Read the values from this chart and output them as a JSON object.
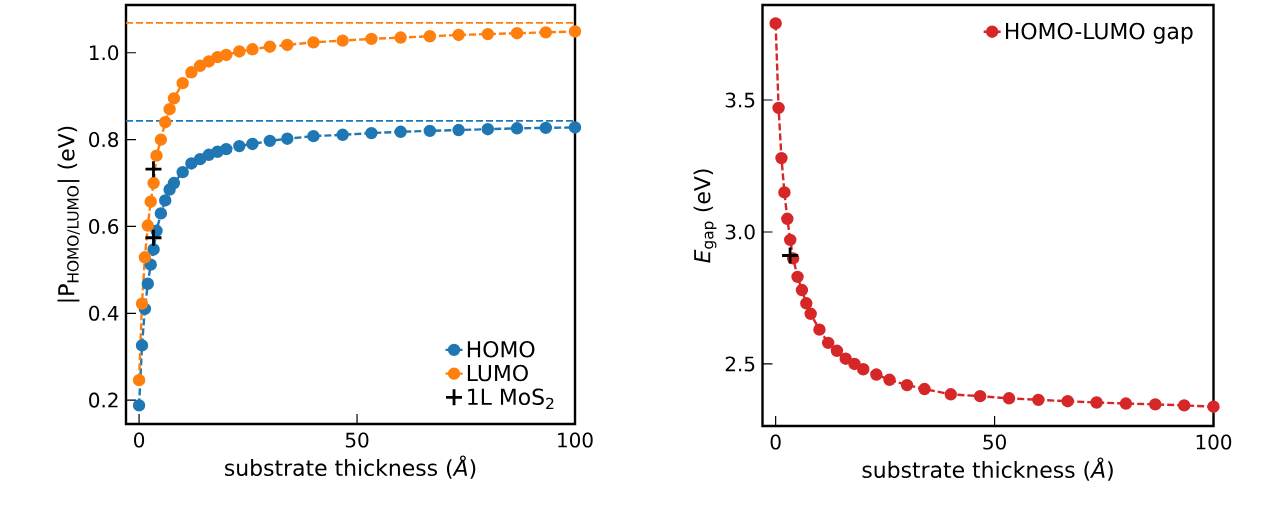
{
  "chart_data": [
    {
      "type": "line",
      "xlabel": "substrate thickness (*Å*)",
      "ylabel": "|P$_{HOMO/LUMO}$| (eV)",
      "xlim": [
        -3,
        100
      ],
      "ylim": [
        0.145,
        1.11
      ],
      "xticks": [
        0,
        50,
        100
      ],
      "yticks": [
        0.2,
        0.4,
        0.6,
        0.8,
        {
          "value": 1,
          "label": "1.0"
        }
      ],
      "legend": "bottom right",
      "marker": "circle",
      "line_style": "dashed",
      "series": [
        {
          "name": "HOMO",
          "color": "#1f77b4",
          "x": [
            0,
            0.67,
            1.33,
            2,
            2.67,
            3.33,
            4,
            5,
            6,
            7,
            8,
            10,
            12,
            14,
            16,
            18,
            20,
            23,
            26,
            30,
            34,
            40,
            46.7,
            53.3,
            60,
            66.7,
            73.3,
            80,
            86.7,
            93.3,
            100
          ],
          "values": [
            0.188,
            0.326,
            0.41,
            0.468,
            0.512,
            0.547,
            0.59,
            0.63,
            0.66,
            0.685,
            0.7,
            0.725,
            0.745,
            0.755,
            0.765,
            0.772,
            0.778,
            0.785,
            0.79,
            0.797,
            0.802,
            0.808,
            0.811,
            0.815,
            0.818,
            0.82,
            0.822,
            0.824,
            0.826,
            0.827,
            0.828
          ]
        },
        {
          "name": "LUMO",
          "color": "#ff7f0e",
          "x": [
            0,
            0.67,
            1.33,
            2,
            2.67,
            3.33,
            4,
            5,
            6,
            7,
            8,
            10,
            12,
            14,
            16,
            18,
            20,
            23,
            26,
            30,
            34,
            40,
            46.7,
            53.3,
            60,
            66.7,
            73.3,
            80,
            86.7,
            93.3,
            100
          ],
          "values": [
            0.246,
            0.422,
            0.529,
            0.602,
            0.657,
            0.7,
            0.763,
            0.8,
            0.84,
            0.87,
            0.895,
            0.93,
            0.955,
            0.97,
            0.98,
            0.99,
            0.995,
            1.003,
            1.008,
            1.014,
            1.018,
            1.024,
            1.028,
            1.032,
            1.035,
            1.038,
            1.041,
            1.043,
            1.045,
            1.047,
            1.049
          ]
        },
        {
          "name": "1L MoS$_{2}$",
          "type": "scatter",
          "marker": "cross",
          "color": "#000000",
          "x": [
            3.3,
            3.3
          ],
          "values": [
            0.574,
            0.732
          ]
        }
      ],
      "ref_lines": [
        {
          "axis": "y",
          "value": 0.843,
          "color": "#1f77b4",
          "line_style": "dashed"
        },
        {
          "axis": "y",
          "value": 1.069,
          "color": "#ff7f0e",
          "line_style": "dashed"
        }
      ]
    },
    {
      "type": "line",
      "xlabel": "substrate thickness (*Å*)",
      "ylabel": "*E*$_{gap}$ (eV)",
      "xlim": [
        -3,
        100
      ],
      "ylim": [
        2.265,
        3.86
      ],
      "xticks": [
        0,
        50,
        100
      ],
      "yticks": [
        2.5,
        {
          "value": 3,
          "label": "3.0"
        },
        3.5
      ],
      "legend": "top right",
      "marker": "circle",
      "line_style": "dashed",
      "series": [
        {
          "name": "HOMO-LUMO gap",
          "color": "#d62728",
          "x": [
            0,
            0.67,
            1.33,
            2,
            2.67,
            3.33,
            4,
            5,
            6,
            7,
            8,
            10,
            12,
            14,
            16,
            18,
            20,
            23,
            26,
            30,
            34,
            40,
            46.7,
            53.3,
            60,
            66.7,
            73.3,
            80,
            86.7,
            93.3,
            100
          ],
          "values": [
            3.79,
            3.47,
            3.28,
            3.15,
            3.05,
            2.97,
            2.9,
            2.83,
            2.78,
            2.73,
            2.69,
            2.63,
            2.58,
            2.55,
            2.52,
            2.5,
            2.48,
            2.46,
            2.44,
            2.42,
            2.405,
            2.385,
            2.378,
            2.37,
            2.364,
            2.359,
            2.354,
            2.35,
            2.347,
            2.343,
            2.338
          ]
        },
        {
          "type": "scatter",
          "marker": "cross",
          "color": "#000000",
          "x": [
            3.3
          ],
          "values": [
            2.911
          ]
        }
      ]
    }
  ]
}
